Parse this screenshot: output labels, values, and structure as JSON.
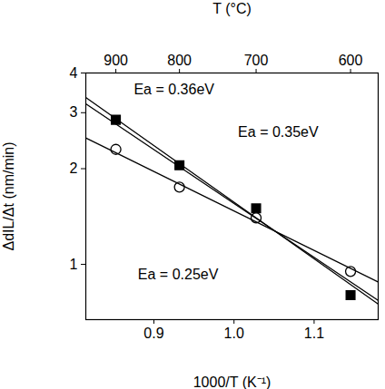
{
  "chart_data": {
    "type": "scatter",
    "xlabel": "1000/T (K⁻¹)",
    "ylabel": "ΔdIL/Δt (nm/min)",
    "x2label": "T (°C)",
    "log": "y",
    "xlim": [
      0.815,
      1.18
    ],
    "ylim": [
      0.67,
      4
    ],
    "xticks": [
      0.9,
      {
        "value": 1.0,
        "label": "1.0"
      },
      1.1
    ],
    "yticks": [
      1,
      2,
      3,
      4
    ],
    "x2ticks": [
      {
        "value": 0.8525,
        "label": "900"
      },
      {
        "value": 0.9319,
        "label": "800"
      },
      {
        "value": 1.0276,
        "label": "700"
      },
      {
        "value": 1.1455,
        "label": "600"
      }
    ],
    "series": [
      {
        "type": "scatter",
        "color": "#000000",
        "marker": "square",
        "x": [
          0.8525,
          0.9319,
          1.0276,
          1.1455
        ],
        "values": [
          2.85,
          2.05,
          1.5,
          0.8
        ]
      },
      {
        "type": "scatter",
        "color": "#000000",
        "marker": "circle_open",
        "x": [
          0.8525,
          0.9319,
          1.0276,
          1.1455
        ],
        "values": [
          2.3,
          1.75,
          1.4,
          0.95
        ]
      },
      {
        "type": "line",
        "color": "#000000",
        "line_style": "solid",
        "x": [
          0.815,
          1.18
        ],
        "values": [
          3.35,
          0.75
        ]
      },
      {
        "type": "line",
        "color": "#000000",
        "line_style": "solid",
        "x": [
          0.815,
          1.18
        ],
        "values": [
          3.2,
          0.77
        ]
      },
      {
        "type": "line",
        "color": "#000000",
        "line_style": "solid",
        "x": [
          0.815,
          1.18
        ],
        "values": [
          2.5,
          0.88
        ]
      }
    ],
    "annotations": [
      {
        "text": "Ea = 0.36eV",
        "x": 0.875,
        "y": 3.55
      },
      {
        "text": "Ea = 0.35eV",
        "x": 1.005,
        "y": 2.6
      },
      {
        "text": "Ea = 0.25eV",
        "x": 0.88,
        "y": 0.93
      }
    ]
  }
}
